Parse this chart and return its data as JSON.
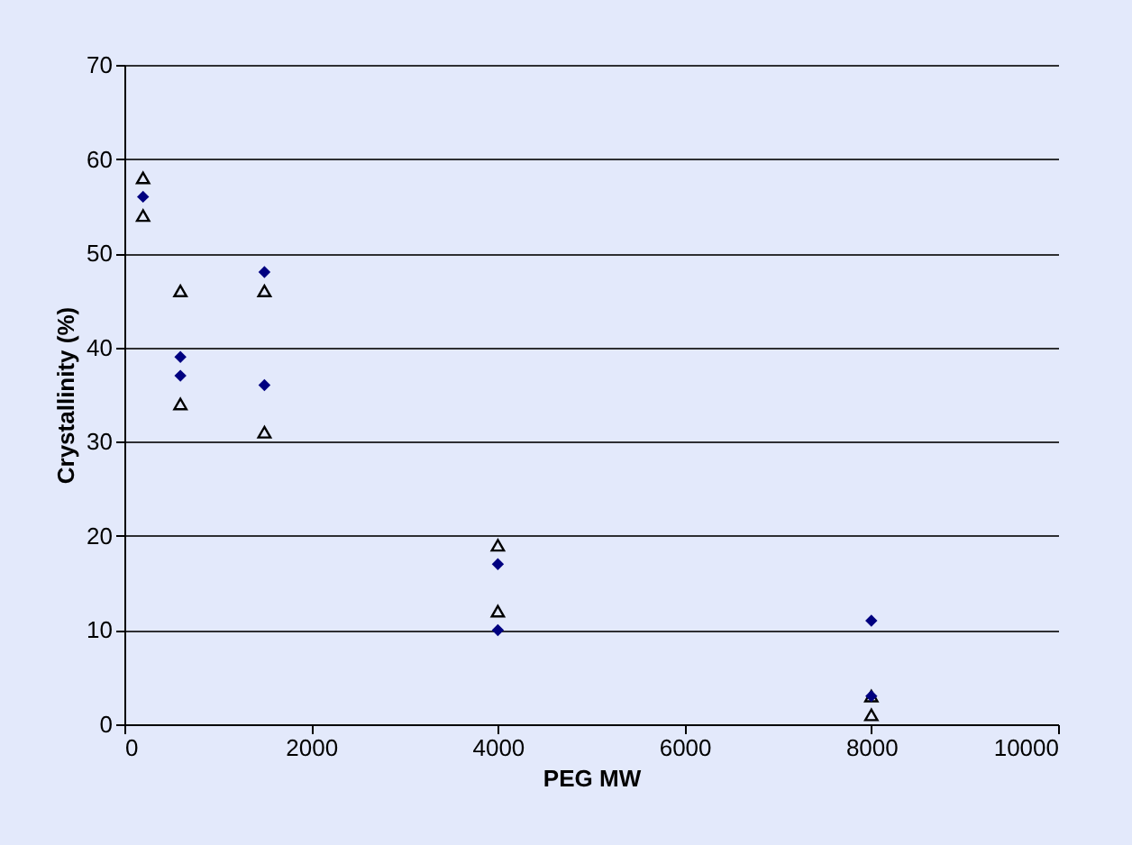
{
  "chart_data": {
    "type": "scatter",
    "xlabel": "PEG MW",
    "ylabel": "Crystallinity (%)",
    "xlim": [
      0,
      10000
    ],
    "xticks": [
      0,
      2000,
      4000,
      6000,
      8000,
      10000
    ],
    "ylim": [
      0,
      70
    ],
    "yticks": [
      0,
      10,
      20,
      30,
      40,
      50,
      60,
      70
    ],
    "grid": "y",
    "series": [
      {
        "color": "#000080",
        "marker": "diamond",
        "x": [
          200,
          600,
          600,
          1500,
          1500,
          4000,
          4000,
          8000,
          8000
        ],
        "values": [
          56,
          39,
          37,
          48,
          36,
          17,
          10,
          11,
          3
        ]
      },
      {
        "color": "#000000",
        "marker": "triangle",
        "x": [
          200,
          200,
          600,
          600,
          1500,
          1500,
          4000,
          4000,
          8000,
          8000
        ],
        "values": [
          58,
          54,
          46,
          34,
          46,
          31,
          19,
          12,
          3,
          1
        ]
      }
    ]
  }
}
